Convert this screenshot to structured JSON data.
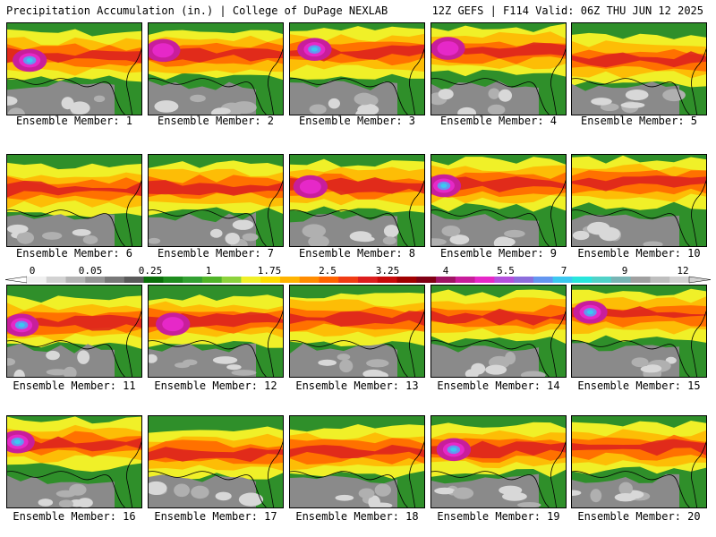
{
  "header": {
    "title": "Precipitation Accumulation (in.) | College of DuPage NEXLAB",
    "run_info": "12Z GEFS | F114 Valid: 06Z THU JUN 12 2025"
  },
  "members": [
    {
      "label": "Ensemble Member: 1"
    },
    {
      "label": "Ensemble Member: 2"
    },
    {
      "label": "Ensemble Member: 3"
    },
    {
      "label": "Ensemble Member: 4"
    },
    {
      "label": "Ensemble Member: 5"
    },
    {
      "label": "Ensemble Member: 6"
    },
    {
      "label": "Ensemble Member: 7"
    },
    {
      "label": "Ensemble Member: 8"
    },
    {
      "label": "Ensemble Member: 9"
    },
    {
      "label": "Ensemble Member: 10"
    },
    {
      "label": "Ensemble Member: 11"
    },
    {
      "label": "Ensemble Member: 12"
    },
    {
      "label": "Ensemble Member: 13"
    },
    {
      "label": "Ensemble Member: 14"
    },
    {
      "label": "Ensemble Member: 15"
    },
    {
      "label": "Ensemble Member: 16"
    },
    {
      "label": "Ensemble Member: 17"
    },
    {
      "label": "Ensemble Member: 18"
    },
    {
      "label": "Ensemble Member: 19"
    },
    {
      "label": "Ensemble Member: 20"
    }
  ],
  "colorbar": {
    "tick_labels": [
      "0",
      "0.05",
      "0.25",
      "1",
      "1.75",
      "2.5",
      "3.25",
      "4",
      "5.5",
      "7",
      "9",
      "12"
    ],
    "colors": [
      "#f0f0f0",
      "#d2d2d2",
      "#b4b4b4",
      "#969696",
      "#787878",
      "#5a5a5a",
      "#0a6e0a",
      "#1e8c1e",
      "#32a032",
      "#50b428",
      "#8cd23c",
      "#f0f028",
      "#ffdc00",
      "#ffb400",
      "#ff8c00",
      "#ff6400",
      "#f03c14",
      "#dc1e1e",
      "#c80a0a",
      "#a00000",
      "#800014",
      "#a01464",
      "#c81e9b",
      "#e628c8",
      "#b450dc",
      "#8c6edc",
      "#6496f0",
      "#3cc8f0",
      "#28e6dc",
      "#50d2c8",
      "#78b4b4",
      "#a0a0a0",
      "#bebebe",
      "#d2d2d2"
    ]
  }
}
